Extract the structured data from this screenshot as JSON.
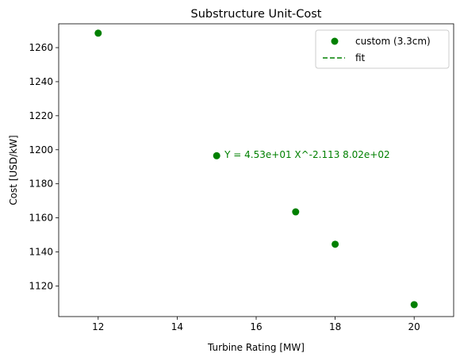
{
  "chart_data": {
    "type": "scatter",
    "title": "Substructure Unit-Cost",
    "xlabel": "Turbine Rating [MW]",
    "ylabel": "Cost [USD/kW]",
    "xlim": [
      11,
      21
    ],
    "ylim": [
      1102,
      1274
    ],
    "xticks": [
      12,
      14,
      16,
      18,
      20
    ],
    "yticks": [
      1120,
      1140,
      1160,
      1180,
      1200,
      1220,
      1240,
      1260
    ],
    "grid": false,
    "legend_position": "top-right",
    "series": [
      {
        "name": "custom (3.3cm)",
        "kind": "scatter",
        "color": "#008000",
        "x": [
          12,
          15,
          17,
          18,
          20
        ],
        "y": [
          1268.5,
          1196.5,
          1163.5,
          1144.5,
          1109
        ]
      },
      {
        "name": "fit",
        "kind": "line",
        "style": "dashed",
        "color": "#008000",
        "x": [],
        "y": []
      }
    ],
    "annotations": [
      {
        "text": "Y = 4.53e+01 X^-2.113 8.02e+02",
        "x": 15.2,
        "y": 1197,
        "color": "#008000"
      }
    ]
  }
}
